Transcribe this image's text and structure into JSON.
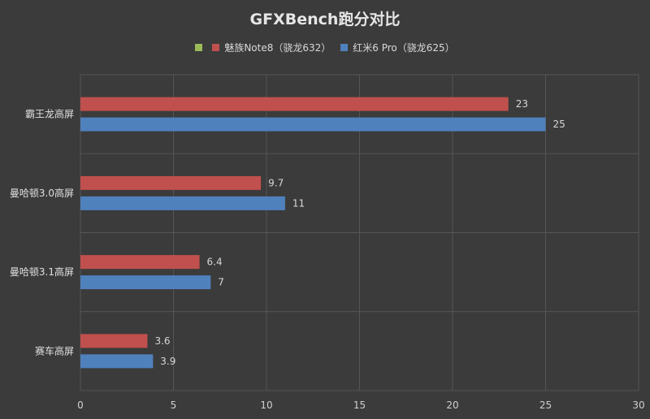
{
  "chart_data": {
    "type": "bar",
    "orientation": "horizontal",
    "title": "GFXBench跑分对比",
    "categories": [
      "霸王龙高屏",
      "曼哈顿3.0高屏",
      "曼哈顿3.1高屏",
      "赛车高屏"
    ],
    "series": [
      {
        "name": "魅族Note8（骁龙632）",
        "color": "#c0504d",
        "values": [
          23,
          9.7,
          6.4,
          3.6
        ]
      },
      {
        "name": "红米6 Pro（骁龙625）",
        "color": "#4f81bd",
        "values": [
          25,
          11,
          7,
          3.9
        ]
      }
    ],
    "legend": [
      {
        "name": "",
        "color": "#9bbb59"
      },
      {
        "name": "魅族Note8（骁龙632）",
        "color": "#c0504d"
      },
      {
        "name": "红米6 Pro（骁龙625）",
        "color": "#4f81bd"
      }
    ],
    "legend_position": "top",
    "xlim": [
      0,
      30
    ],
    "xticks": [
      0,
      5,
      10,
      15,
      20,
      25,
      30
    ],
    "grid": true
  }
}
